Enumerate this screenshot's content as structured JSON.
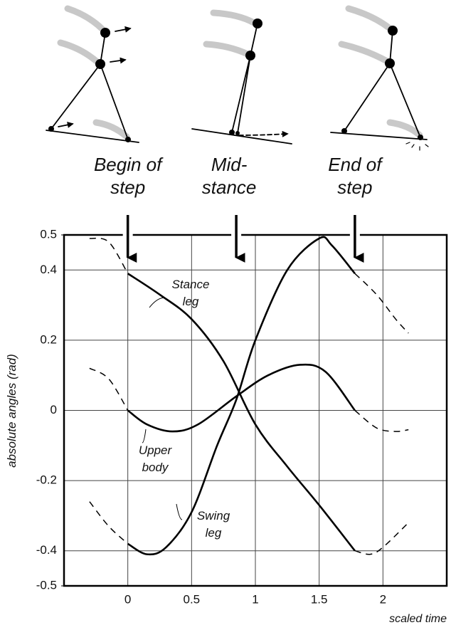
{
  "chart_data": {
    "type": "line",
    "y_label": "absolute angles (rad)",
    "x_label": "scaled time",
    "xlim": [
      -0.5,
      2.5
    ],
    "ylim": [
      -0.5,
      0.5
    ],
    "xticks": [
      0,
      0.5,
      1,
      1.5,
      2
    ],
    "yticks": [
      -0.5,
      -0.4,
      -0.2,
      0,
      0.2,
      0.4,
      0.5
    ],
    "grid": true,
    "phases": [
      {
        "x": 0,
        "label": [
          "Begin of",
          "step"
        ]
      },
      {
        "x": 0.85,
        "label": [
          "Mid-",
          "stance"
        ]
      },
      {
        "x": 1.78,
        "label": [
          "End of",
          "step"
        ]
      }
    ],
    "series": [
      {
        "name": "Stance leg",
        "color": "#000",
        "dashed": false,
        "x": [
          0,
          0.25,
          0.5,
          0.75,
          1,
          1.25,
          1.5,
          1.78
        ],
        "values": [
          0.39,
          0.33,
          0.26,
          0.14,
          -0.04,
          -0.16,
          -0.27,
          -0.4
        ]
      },
      {
        "color": "#000",
        "dashed": true,
        "x": [
          -0.3,
          -0.15,
          0
        ],
        "values": [
          0.49,
          0.48,
          0.39
        ]
      },
      {
        "color": "#000",
        "dashed": true,
        "x": [
          1.78,
          1.9,
          2.0,
          2.2
        ],
        "values": [
          -0.4,
          -0.41,
          -0.39,
          -0.32
        ]
      },
      {
        "name": "Swing leg",
        "color": "#000",
        "dashed": false,
        "x": [
          0,
          0.15,
          0.3,
          0.5,
          0.7,
          0.85,
          1.0,
          1.25,
          1.5,
          1.6,
          1.78
        ],
        "values": [
          -0.38,
          -0.41,
          -0.39,
          -0.29,
          -0.1,
          0.03,
          0.2,
          0.4,
          0.49,
          0.47,
          0.39
        ]
      },
      {
        "color": "#000",
        "dashed": true,
        "x": [
          -0.3,
          -0.15,
          0
        ],
        "values": [
          -0.26,
          -0.33,
          -0.38
        ]
      },
      {
        "color": "#000",
        "dashed": true,
        "x": [
          1.78,
          1.95,
          2.1,
          2.2
        ],
        "values": [
          0.39,
          0.33,
          0.26,
          0.22
        ]
      },
      {
        "name": "Upper body",
        "color": "#000",
        "dashed": false,
        "x": [
          0,
          0.15,
          0.35,
          0.55,
          0.85,
          1.1,
          1.35,
          1.55,
          1.78
        ],
        "values": [
          0,
          -0.04,
          -0.06,
          -0.04,
          0.04,
          0.1,
          0.13,
          0.11,
          0
        ]
      },
      {
        "color": "#000",
        "dashed": true,
        "x": [
          -0.3,
          -0.15,
          0
        ],
        "values": [
          0.12,
          0.09,
          0
        ]
      },
      {
        "color": "#000",
        "dashed": true,
        "x": [
          1.78,
          1.95,
          2.1,
          2.2
        ],
        "values": [
          0,
          -0.05,
          -0.06,
          -0.055
        ]
      }
    ]
  }
}
